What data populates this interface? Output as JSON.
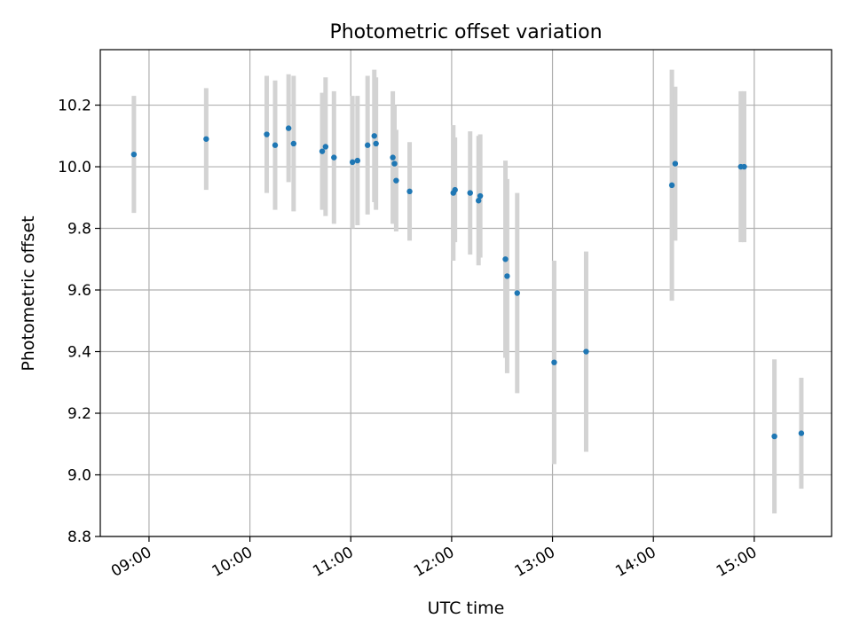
{
  "chart_data": {
    "type": "scatter",
    "title": "Photometric offset variation",
    "xlabel": "UTC time",
    "ylabel": "Photometric offset",
    "x_tick_labels": [
      "09:00",
      "10:00",
      "11:00",
      "12:00",
      "13:00",
      "14:00",
      "15:00"
    ],
    "x_ticks": [
      "09:00",
      "10:00",
      "11:00",
      "12:00",
      "13:00",
      "14:00",
      "15:00"
    ],
    "y_tick_labels": [
      "8.8",
      "9.0",
      "9.2",
      "9.4",
      "9.6",
      "9.8",
      "10.0",
      "10.2"
    ],
    "y_ticks": [
      8.8,
      9.0,
      9.2,
      9.4,
      9.6,
      9.8,
      10.0,
      10.2
    ],
    "xlim": [
      "08:31",
      "15:46"
    ],
    "ylim": [
      8.8,
      10.38
    ],
    "grid": true,
    "colors": {
      "marker": "#1f77b4",
      "errorbar": "#d3d3d3",
      "grid": "#b0b0b0"
    },
    "points": [
      {
        "x": "08:51",
        "y": 10.04,
        "yerr": 0.19
      },
      {
        "x": "09:34",
        "y": 10.09,
        "yerr": 0.165
      },
      {
        "x": "10:10",
        "y": 10.105,
        "yerr": 0.19
      },
      {
        "x": "10:15",
        "y": 10.07,
        "yerr": 0.21
      },
      {
        "x": "10:23",
        "y": 10.125,
        "yerr": 0.175
      },
      {
        "x": "10:26",
        "y": 10.075,
        "yerr": 0.22
      },
      {
        "x": "10:43",
        "y": 10.05,
        "yerr": 0.19
      },
      {
        "x": "10:45",
        "y": 10.065,
        "yerr": 0.225
      },
      {
        "x": "10:50",
        "y": 10.03,
        "yerr": 0.215
      },
      {
        "x": "11:01",
        "y": 10.015,
        "yerr": 0.215
      },
      {
        "x": "11:04",
        "y": 10.02,
        "yerr": 0.21
      },
      {
        "x": "11:10",
        "y": 10.07,
        "yerr": 0.225
      },
      {
        "x": "11:14",
        "y": 10.1,
        "yerr": 0.215
      },
      {
        "x": "11:15",
        "y": 10.075,
        "yerr": 0.215
      },
      {
        "x": "11:25",
        "y": 10.03,
        "yerr": 0.215
      },
      {
        "x": "11:26",
        "y": 10.01,
        "yerr": 0.19
      },
      {
        "x": "11:27",
        "y": 9.955,
        "yerr": 0.165
      },
      {
        "x": "11:35",
        "y": 9.92,
        "yerr": 0.16
      },
      {
        "x": "12:01",
        "y": 9.915,
        "yerr": 0.22
      },
      {
        "x": "12:02",
        "y": 9.925,
        "yerr": 0.17
      },
      {
        "x": "12:11",
        "y": 9.915,
        "yerr": 0.2
      },
      {
        "x": "12:16",
        "y": 9.89,
        "yerr": 0.21
      },
      {
        "x": "12:17",
        "y": 9.905,
        "yerr": 0.2
      },
      {
        "x": "12:32",
        "y": 9.7,
        "yerr": 0.32
      },
      {
        "x": "12:33",
        "y": 9.645,
        "yerr": 0.315
      },
      {
        "x": "12:39",
        "y": 9.59,
        "yerr": 0.325
      },
      {
        "x": "13:01",
        "y": 9.365,
        "yerr": 0.33
      },
      {
        "x": "13:20",
        "y": 9.4,
        "yerr": 0.325
      },
      {
        "x": "14:11",
        "y": 9.94,
        "yerr": 0.375
      },
      {
        "x": "14:13",
        "y": 10.01,
        "yerr": 0.25
      },
      {
        "x": "14:52",
        "y": 10.0,
        "yerr": 0.245
      },
      {
        "x": "14:54",
        "y": 10.0,
        "yerr": 0.245
      },
      {
        "x": "15:12",
        "y": 9.125,
        "yerr": 0.25
      },
      {
        "x": "15:28",
        "y": 9.135,
        "yerr": 0.18
      }
    ]
  }
}
